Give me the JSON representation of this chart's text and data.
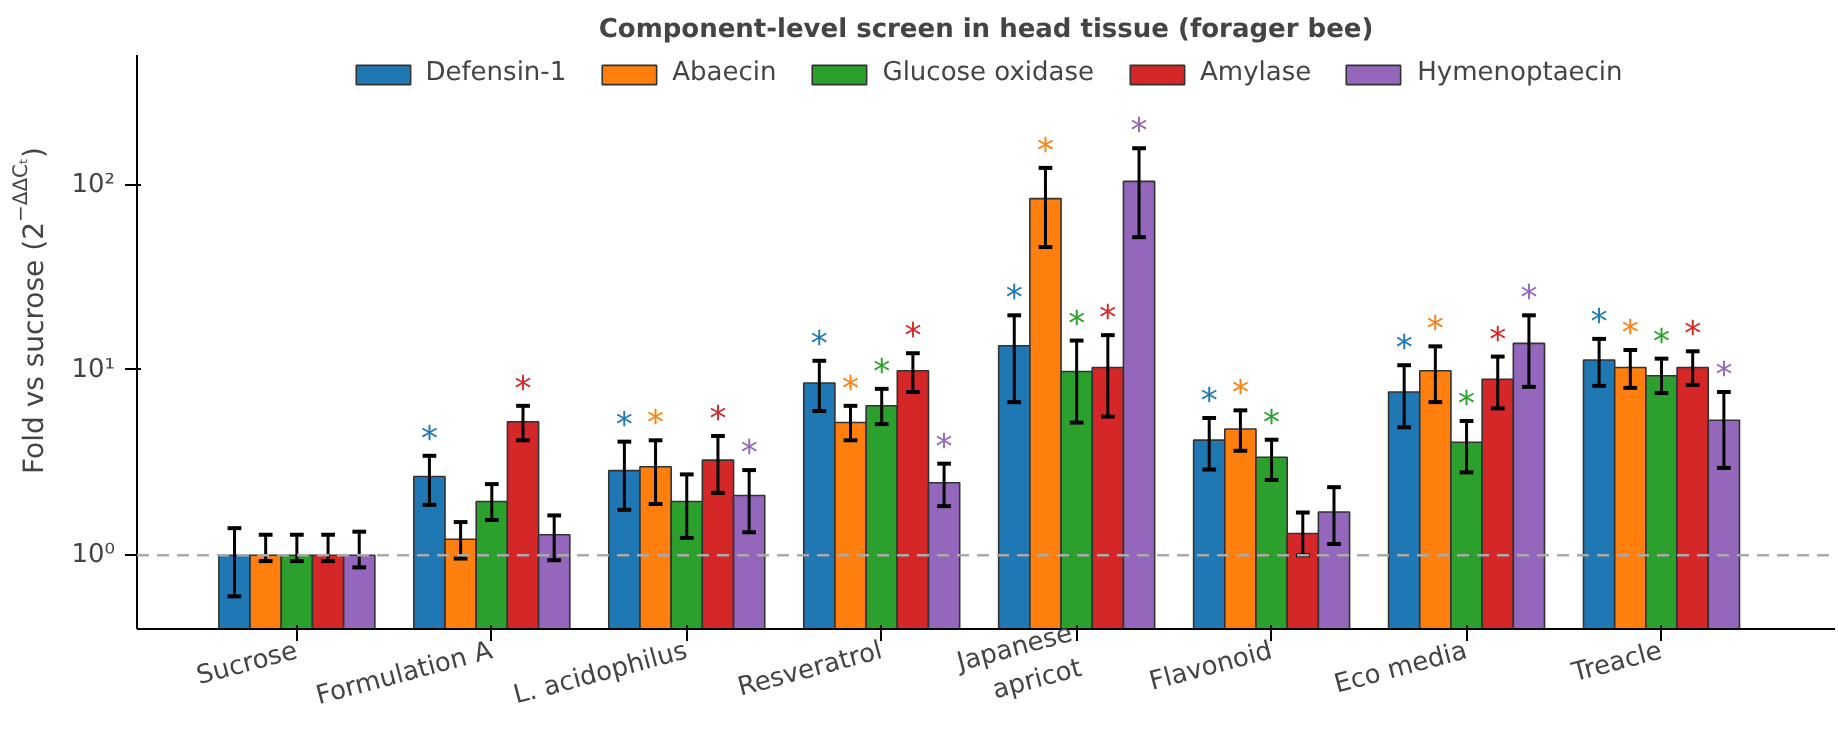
{
  "chart_data": {
    "type": "bar",
    "title": "Component-level screen in head tissue (forager bee)",
    "ylabel": "Fold vs sucrose (2$^{−ΔΔCₜ}$)",
    "categories": [
      "Sucrose",
      "Formulation A",
      "L. acidophilus",
      "Resveratrol",
      "Japanese\napricot",
      "Flavonoid",
      "Eco media",
      "Treacle"
    ],
    "log": "y",
    "ylim": [
      0.4,
      500
    ],
    "yticks": [
      {
        "value": 1,
        "label": "10⁰"
      },
      {
        "value": 10,
        "label": "10¹"
      },
      {
        "value": 100,
        "label": "10²"
      }
    ],
    "grid": false,
    "legend": "top",
    "ref_lines": [
      {
        "axis": "y",
        "value": 1,
        "color": "#aaaaaa",
        "line_style": "dashed"
      }
    ],
    "series": [
      {
        "name": "Defensin-1",
        "color": "#1f77b4",
        "values": [
          1,
          2.66,
          2.86,
          8.5,
          13.5,
          4.18,
          7.6,
          11.3
        ],
        "errors": [
          [
            0.6,
            1.4
          ],
          [
            1.87,
            3.44
          ],
          [
            1.76,
            4.1
          ],
          [
            6.0,
            11.2
          ],
          [
            6.7,
            19.7
          ],
          [
            2.9,
            5.5
          ],
          [
            4.9,
            10.6
          ],
          [
            8.2,
            14.7
          ]
        ],
        "value_labels": [
          null,
          "*",
          "*",
          "*",
          "*",
          "*",
          "*",
          "*"
        ]
      },
      {
        "name": "Abaecin",
        "color": "#ff7f0e",
        "values": [
          1,
          1.22,
          3.0,
          5.2,
          84,
          4.8,
          9.9,
          10.3
        ],
        "errors": [
          [
            0.93,
            1.29
          ],
          [
            0.96,
            1.51
          ],
          [
            1.89,
            4.17
          ],
          [
            4.17,
            6.4
          ],
          [
            46,
            123
          ],
          [
            3.66,
            6.05
          ],
          [
            6.7,
            13.4
          ],
          [
            8.0,
            12.8
          ]
        ],
        "value_labels": [
          null,
          null,
          "*",
          "*",
          "*",
          "*",
          "*",
          "*"
        ]
      },
      {
        "name": "Glucose oxidase",
        "color": "#2ca02c",
        "values": [
          1,
          1.95,
          1.95,
          6.4,
          9.8,
          3.38,
          4.07,
          9.3
        ],
        "errors": [
          [
            0.93,
            1.29
          ],
          [
            1.55,
            2.42
          ],
          [
            1.24,
            2.73
          ],
          [
            5.1,
            7.9
          ],
          [
            5.2,
            14.4
          ],
          [
            2.55,
            4.2
          ],
          [
            2.8,
            5.3
          ],
          [
            7.5,
            11.5
          ]
        ],
        "value_labels": [
          null,
          null,
          null,
          "*",
          "*",
          "*",
          "*",
          "*"
        ]
      },
      {
        "name": "Amylase",
        "color": "#d62728",
        "values": [
          1,
          5.25,
          3.26,
          9.9,
          10.3,
          1.31,
          8.9,
          10.3
        ],
        "errors": [
          [
            0.93,
            1.29
          ],
          [
            4.17,
            6.4
          ],
          [
            2.17,
            4.4
          ],
          [
            7.6,
            12.3
          ],
          [
            5.6,
            15.4
          ],
          [
            1.0,
            1.7
          ],
          [
            6.2,
            11.8
          ],
          [
            8.3,
            12.6
          ]
        ],
        "value_labels": [
          null,
          "*",
          "*",
          "*",
          "*",
          null,
          "*",
          "*"
        ]
      },
      {
        "name": "Hymenoptaecin",
        "color": "#9467bd",
        "values": [
          1,
          1.29,
          2.1,
          2.46,
          104,
          1.71,
          13.9,
          5.35
        ],
        "errors": [
          [
            0.86,
            1.34
          ],
          [
            0.94,
            1.64
          ],
          [
            1.33,
            2.88
          ],
          [
            1.84,
            3.12
          ],
          [
            52,
            157
          ],
          [
            1.15,
            2.33
          ],
          [
            8.1,
            19.7
          ],
          [
            2.96,
            7.6
          ]
        ],
        "value_labels": [
          null,
          null,
          "*",
          "*",
          "*",
          null,
          "*",
          "*"
        ]
      }
    ]
  }
}
